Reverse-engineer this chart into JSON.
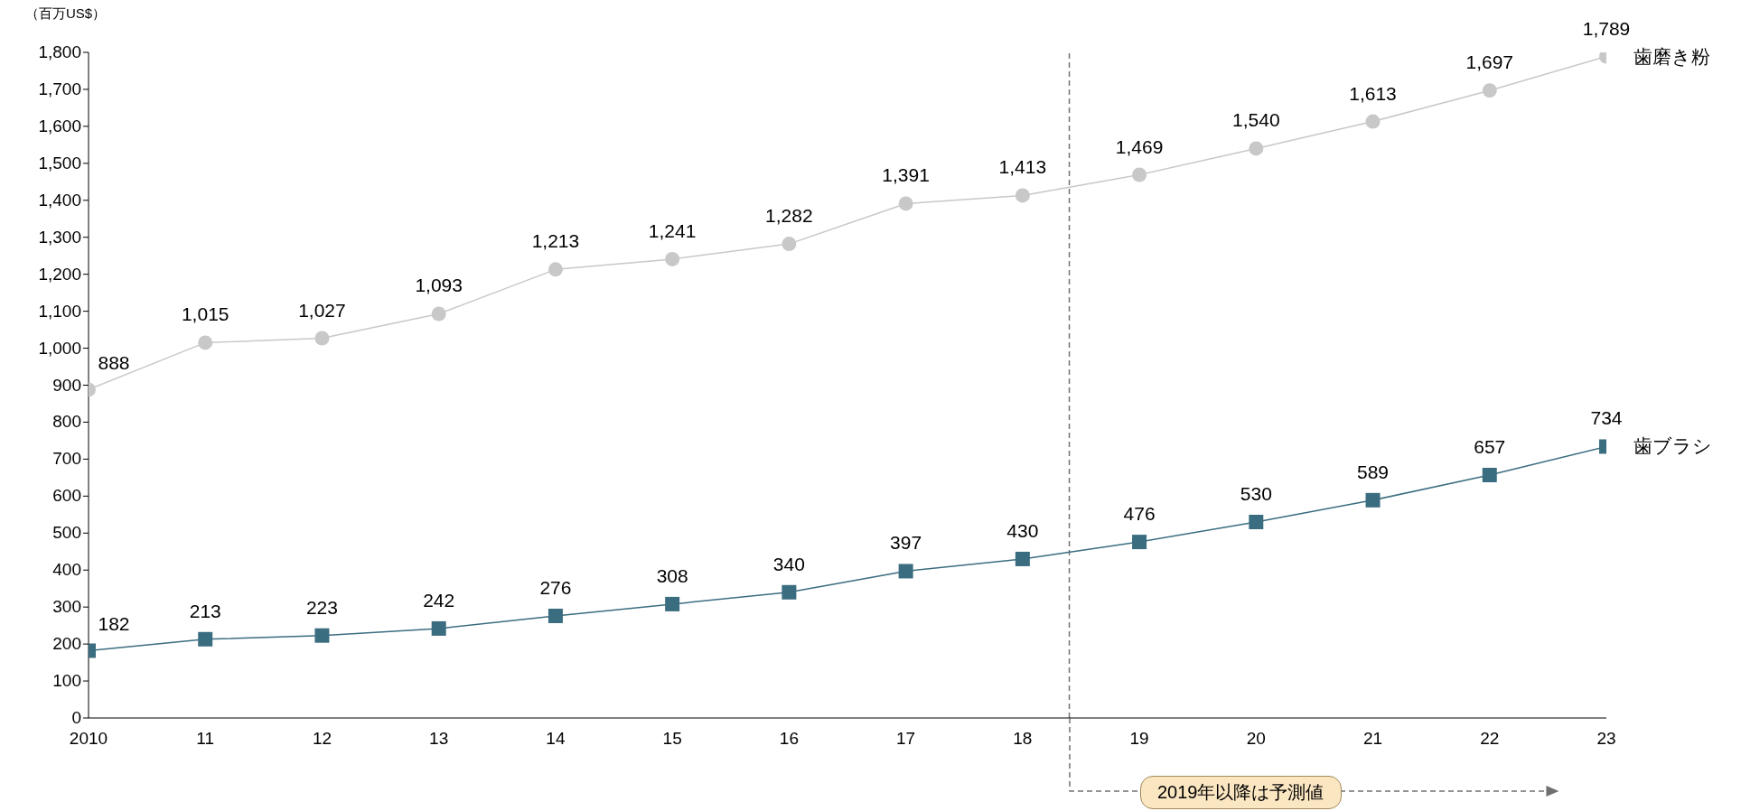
{
  "chart_data": {
    "type": "line",
    "ylabel": "（百万US$）",
    "x": [
      2010,
      2011,
      2012,
      2013,
      2014,
      2015,
      2016,
      2017,
      2018,
      2019,
      2020,
      2021,
      2022,
      2023
    ],
    "xlim": [
      2010,
      2023
    ],
    "xticks": [
      {
        "value": 2010,
        "label": "2010"
      },
      {
        "value": 2011,
        "label": "11"
      },
      {
        "value": 2012,
        "label": "12"
      },
      {
        "value": 2013,
        "label": "13"
      },
      {
        "value": 2014,
        "label": "14"
      },
      {
        "value": 2015,
        "label": "15"
      },
      {
        "value": 2016,
        "label": "16"
      },
      {
        "value": 2017,
        "label": "17"
      },
      {
        "value": 2018,
        "label": "18"
      },
      {
        "value": 2019,
        "label": "19"
      },
      {
        "value": 2020,
        "label": "20"
      },
      {
        "value": 2021,
        "label": "21"
      },
      {
        "value": 2022,
        "label": "22"
      },
      {
        "value": 2023,
        "label": "23"
      }
    ],
    "ylim": [
      0,
      1800
    ],
    "yticks": [
      0,
      100,
      200,
      300,
      400,
      500,
      600,
      700,
      800,
      900,
      {
        "value": 1000,
        "label": "1,000"
      },
      {
        "value": 1100,
        "label": "1,100"
      },
      {
        "value": 1200,
        "label": "1,200"
      },
      {
        "value": 1300,
        "label": "1,300"
      },
      {
        "value": 1400,
        "label": "1,400"
      },
      {
        "value": 1500,
        "label": "1,500"
      },
      {
        "value": 1600,
        "label": "1,600"
      },
      {
        "value": 1700,
        "label": "1,700"
      },
      {
        "value": 1800,
        "label": "1,800"
      }
    ],
    "series": [
      {
        "name": "歯磨き粉",
        "color": "#c8c8c8",
        "marker": "circle",
        "values": [
          888,
          1015,
          1027,
          1093,
          1213,
          1241,
          1282,
          1391,
          1413,
          1469,
          1540,
          1613,
          1697,
          1789
        ],
        "value_labels": [
          "888",
          "1,015",
          "1,027",
          "1,093",
          "1,213",
          "1,241",
          "1,282",
          "1,391",
          "1,413",
          "1,469",
          "1,540",
          "1,613",
          "1,697",
          "1,789"
        ]
      },
      {
        "name": "歯ブラシ",
        "color": "#3b6d80",
        "marker": "square",
        "values": [
          182,
          213,
          223,
          242,
          276,
          308,
          340,
          397,
          430,
          476,
          530,
          589,
          657,
          734
        ],
        "value_labels": [
          "182",
          "213",
          "223",
          "242",
          "276",
          "308",
          "340",
          "397",
          "430",
          "476",
          "530",
          "589",
          "657",
          "734"
        ]
      }
    ],
    "ref_lines": [
      {
        "axis": "x",
        "value": 2018.4,
        "color": "#707070",
        "line_style": "dashed"
      }
    ],
    "annotations": [
      "2019年以降は予測値"
    ],
    "grid": false
  }
}
